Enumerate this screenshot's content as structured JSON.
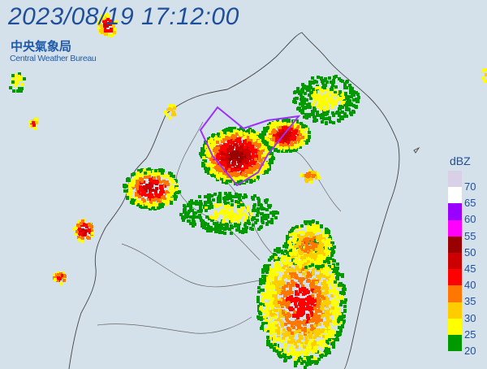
{
  "header": {
    "timestamp": "2023/08/19 17:12:00",
    "agency_zh": "中央氣象局",
    "agency_en": "Central Weather Bureau"
  },
  "legend": {
    "unit": "dBZ",
    "labels": [
      "70",
      "65",
      "60",
      "55",
      "50",
      "45",
      "40",
      "35",
      "30",
      "25",
      "20"
    ],
    "colors": [
      "#d9cfe6",
      "#ffffff",
      "#9a00ff",
      "#ff00ff",
      "#9a0000",
      "#cc0000",
      "#ff0000",
      "#ff7700",
      "#ffcc00",
      "#ffff00",
      "#009900"
    ]
  },
  "map": {
    "background": "#d5e1ea",
    "coastline_color": "#444444",
    "warning_outline_color": "#9b30ff"
  }
}
